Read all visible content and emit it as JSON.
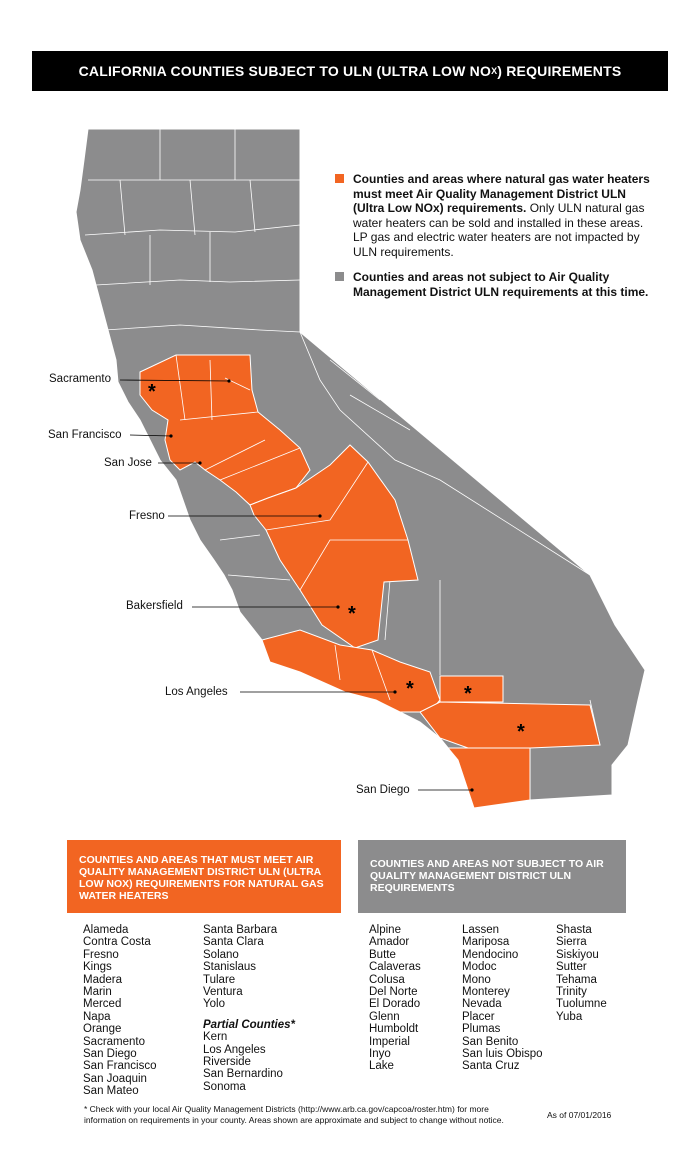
{
  "title": {
    "main": "CALIFORNIA COUNTIES SUBJECT TO ULN (ULTRA LOW NO",
    "sub": "X",
    "end": ") REQUIREMENTS"
  },
  "colors": {
    "uln": "#f26522",
    "non_uln": "#8c8c8d",
    "border": "#ffffff"
  },
  "legend": {
    "uln_bold": "Counties and areas where natural gas water heaters must meet Air Quality Management District ULN (Ultra Low NOx) requirements.",
    "uln_text": "Only ULN natural gas water heaters can be sold and installed in these areas. LP gas and electric water heaters are not impacted by ULN requirements.",
    "non_uln_bold": "Counties and areas not subject to Air Quality Management District ULN requirements at this time."
  },
  "cities": {
    "sacramento": "Sacramento",
    "san_francisco": "San Francisco",
    "san_jose": "San Jose",
    "fresno": "Fresno",
    "bakersfield": "Bakersfield",
    "los_angeles": "Los Angeles",
    "san_diego": "San Diego"
  },
  "partial_marker": "*",
  "uln_box": {
    "heading": "COUNTIES AND AREAS THAT MUST MEET AIR QUALITY MANAGEMENT DISTRICT ULN (ULTRA LOW NOX) REQUIREMENTS FOR NATURAL GAS WATER HEATERS",
    "col1": [
      "Alameda",
      "Contra Costa",
      "Fresno",
      "Kings",
      "Madera",
      "Marin",
      "Merced",
      "Napa",
      "Orange",
      "Sacramento",
      "San Diego",
      "San Francisco",
      "San Joaquin",
      "San Mateo"
    ],
    "col2": [
      "Santa Barbara",
      "Santa Clara",
      "Solano",
      "Stanislaus",
      "Tulare",
      "Ventura",
      "Yolo"
    ],
    "partial_title": "Partial Counties*",
    "partial": [
      "Kern",
      "Los Angeles",
      "Riverside",
      "San Bernardino",
      "Sonoma"
    ]
  },
  "non_uln_box": {
    "heading": "COUNTIES AND AREAS NOT SUBJECT TO AIR QUALITY MANAGEMENT DISTRICT ULN REQUIREMENTS",
    "col1": [
      "Alpine",
      "Amador",
      "Butte",
      "Calaveras",
      "Colusa",
      "Del Norte",
      "El Dorado",
      "Glenn",
      "Humboldt",
      "Imperial",
      "Inyo",
      "Lake"
    ],
    "col2": [
      "Lassen",
      "Mariposa",
      "Mendocino",
      "Modoc",
      "Mono",
      "Monterey",
      "Nevada",
      "Placer",
      "Plumas",
      "San Benito",
      "San luis Obispo",
      "Santa Cruz"
    ],
    "col3": [
      "Shasta",
      "Sierra",
      "Siskiyou",
      "Sutter",
      "Tehama",
      "Trinity",
      "Tuolumne",
      "Yuba"
    ]
  },
  "footnote": "* Check with your local Air Quality Management Districts (http://www.arb.ca.gov/capcoa/roster.htm) for more information on requirements in your county. Areas shown are approximate and subject to change without notice.",
  "as_of": "As of 07/01/2016"
}
